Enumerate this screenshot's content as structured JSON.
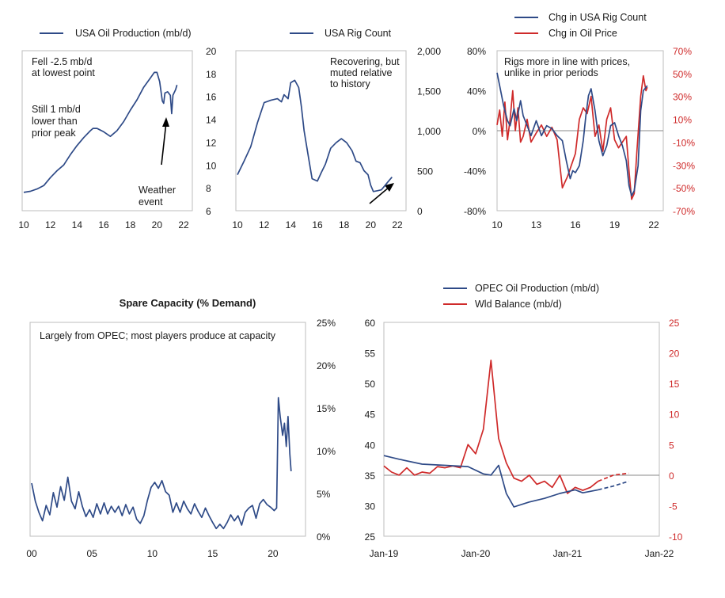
{
  "colors": {
    "blue": "#2e4a87",
    "red": "#cf2a2a",
    "frame": "#bdbdbd"
  },
  "chart_data": [
    {
      "type": "line",
      "legend": [
        "USA Oil Production (mb/d)"
      ],
      "annotations": [
        "Fell -2.5 mb/d",
        "at lowest point",
        "Still 1 mb/d",
        "lower than",
        "prior peak",
        "Weather",
        "event"
      ],
      "x_ticks": [
        "10",
        "12",
        "14",
        "16",
        "18",
        "20",
        "22"
      ],
      "y_ticks_right": [
        "20",
        "18",
        "16",
        "14",
        "12",
        "10",
        "8",
        "6"
      ],
      "xlim": [
        10,
        22
      ],
      "ylim": [
        6,
        20
      ],
      "series": [
        {
          "name": "USA Oil Production (mb/d)",
          "x": [
            10.0,
            10.5,
            11.0,
            11.5,
            12.0,
            12.5,
            13.0,
            13.5,
            14.0,
            14.5,
            15.0,
            15.2,
            15.5,
            16.0,
            16.5,
            17.0,
            17.5,
            18.0,
            18.5,
            19.0,
            19.5,
            19.8,
            20.0,
            20.2,
            20.4,
            20.5,
            20.6,
            20.8,
            21.0,
            21.1,
            21.2,
            21.4,
            21.5
          ],
          "y": [
            7.6,
            7.7,
            7.9,
            8.2,
            8.9,
            9.5,
            10.0,
            10.9,
            11.7,
            12.4,
            13.0,
            13.2,
            13.2,
            12.9,
            12.5,
            13.0,
            13.8,
            14.8,
            15.7,
            16.8,
            17.6,
            18.1,
            18.1,
            17.3,
            15.6,
            15.4,
            16.3,
            16.4,
            16.1,
            14.5,
            16.1,
            16.6,
            17.0
          ]
        }
      ]
    },
    {
      "type": "line",
      "legend": [
        "USA Rig Count"
      ],
      "annotations": [
        "Recovering, but",
        "muted relative",
        "to history"
      ],
      "x_ticks": [
        "10",
        "12",
        "14",
        "16",
        "18",
        "20",
        "22"
      ],
      "y_ticks_right": [
        "2,000",
        "1,500",
        "1,000",
        "500",
        "0"
      ],
      "xlim": [
        10,
        22
      ],
      "ylim": [
        0,
        2000
      ],
      "series": [
        {
          "name": "USA Rig Count",
          "x": [
            10.0,
            10.5,
            11.0,
            11.5,
            12.0,
            12.5,
            13.0,
            13.3,
            13.5,
            13.8,
            14.0,
            14.3,
            14.6,
            14.8,
            15.0,
            15.3,
            15.6,
            16.0,
            16.3,
            16.6,
            17.0,
            17.4,
            17.8,
            18.2,
            18.6,
            18.9,
            19.2,
            19.5,
            19.8,
            20.0,
            20.2,
            20.5,
            20.8,
            21.0,
            21.3,
            21.6
          ],
          "y": [
            450,
            620,
            800,
            1100,
            1350,
            1380,
            1400,
            1360,
            1450,
            1400,
            1600,
            1630,
            1540,
            1300,
            1000,
            700,
            400,
            370,
            480,
            580,
            780,
            850,
            900,
            850,
            750,
            620,
            600,
            500,
            450,
            320,
            240,
            250,
            260,
            300,
            360,
            420
          ]
        }
      ]
    },
    {
      "type": "line",
      "legend": [
        "Chg in USA Rig Count",
        "Chg in Oil Price"
      ],
      "annotations": [
        "Rigs more in line with prices,",
        "unlike in prior periods"
      ],
      "x_ticks": [
        "10",
        "13",
        "16",
        "19",
        "22"
      ],
      "y_ticks_left": [
        "80%",
        "40%",
        "0%",
        "-40%",
        "-80%"
      ],
      "y_ticks_right": [
        "70%",
        "50%",
        "30%",
        "10%",
        "-10%",
        "-30%",
        "-50%",
        "-70%"
      ],
      "xlim": [
        10,
        22
      ],
      "ylim_left": [
        -80,
        80
      ],
      "ylim_right": [
        -70,
        70
      ],
      "series": [
        {
          "name": "Chg in USA Rig Count",
          "axis": "left",
          "x": [
            10.0,
            10.2,
            10.5,
            10.8,
            11.0,
            11.3,
            11.5,
            11.8,
            12.0,
            12.3,
            12.6,
            13.0,
            13.4,
            13.8,
            14.2,
            14.6,
            15.0,
            15.3,
            15.6,
            15.8,
            16.0,
            16.3,
            16.6,
            16.8,
            17.0,
            17.2,
            17.5,
            17.8,
            18.1,
            18.4,
            18.7,
            19.0,
            19.3,
            19.6,
            19.9,
            20.1,
            20.3,
            20.5,
            20.8,
            21.0,
            21.2,
            21.5
          ],
          "y": [
            58,
            45,
            25,
            10,
            5,
            22,
            10,
            30,
            15,
            5,
            -5,
            10,
            -5,
            5,
            2,
            -5,
            -10,
            -30,
            -48,
            -40,
            -42,
            -35,
            -10,
            15,
            35,
            42,
            20,
            -10,
            -25,
            -15,
            5,
            8,
            -5,
            -15,
            -30,
            -55,
            -65,
            -60,
            -35,
            20,
            40,
            45
          ]
        },
        {
          "name": "Chg in Oil Price",
          "axis": "right",
          "x": [
            10.0,
            10.2,
            10.4,
            10.6,
            10.8,
            11.0,
            11.2,
            11.4,
            11.6,
            11.8,
            12.0,
            12.3,
            12.6,
            13.0,
            13.4,
            13.8,
            14.2,
            14.6,
            15.0,
            15.2,
            15.4,
            15.7,
            16.0,
            16.3,
            16.6,
            16.9,
            17.2,
            17.5,
            17.8,
            18.1,
            18.4,
            18.7,
            19.0,
            19.3,
            19.6,
            19.9,
            20.1,
            20.3,
            20.5,
            20.7,
            21.0,
            21.2,
            21.4,
            21.5
          ],
          "y": [
            5,
            18,
            -5,
            25,
            -8,
            10,
            35,
            0,
            20,
            -10,
            -5,
            10,
            -10,
            -2,
            5,
            -5,
            3,
            -8,
            -50,
            -45,
            -40,
            -30,
            -20,
            10,
            20,
            15,
            30,
            -5,
            5,
            -18,
            10,
            20,
            -8,
            -15,
            -10,
            -5,
            -35,
            -60,
            -55,
            -20,
            30,
            48,
            35,
            38
          ]
        }
      ]
    },
    {
      "type": "line",
      "title": "Spare Capacity (% Demand)",
      "annotations": [
        "Largely from OPEC; most players produce at capacity"
      ],
      "x_ticks": [
        "00",
        "05",
        "10",
        "15",
        "20"
      ],
      "y_ticks_right": [
        "25%",
        "20%",
        "15%",
        "10%",
        "5%",
        "0%"
      ],
      "xlim": [
        0,
        22.5
      ],
      "ylim": [
        0,
        25
      ],
      "series": [
        {
          "name": "Spare Capacity",
          "x": [
            0.0,
            0.3,
            0.6,
            0.9,
            1.2,
            1.5,
            1.8,
            2.1,
            2.4,
            2.7,
            3.0,
            3.3,
            3.6,
            3.9,
            4.2,
            4.5,
            4.8,
            5.1,
            5.4,
            5.7,
            6.0,
            6.3,
            6.6,
            6.9,
            7.2,
            7.5,
            7.8,
            8.1,
            8.4,
            8.7,
            9.0,
            9.3,
            9.6,
            9.9,
            10.2,
            10.5,
            10.8,
            11.1,
            11.4,
            11.7,
            12.0,
            12.3,
            12.6,
            12.9,
            13.2,
            13.5,
            13.8,
            14.1,
            14.4,
            14.7,
            15.0,
            15.3,
            15.6,
            15.9,
            16.2,
            16.5,
            16.8,
            17.1,
            17.4,
            17.7,
            18.0,
            18.3,
            18.6,
            18.9,
            19.2,
            19.5,
            19.8,
            20.1,
            20.3,
            20.45,
            20.6,
            20.8,
            20.95,
            21.1,
            21.25,
            21.4,
            21.5
          ],
          "y": [
            6.2,
            4.1,
            2.8,
            1.8,
            3.6,
            2.5,
            5.1,
            3.4,
            5.8,
            4.2,
            6.9,
            4.1,
            3.2,
            5.2,
            3.5,
            2.3,
            3.1,
            2.2,
            3.8,
            2.6,
            3.9,
            2.6,
            3.5,
            2.8,
            3.5,
            2.4,
            3.7,
            2.6,
            3.4,
            2.0,
            1.5,
            2.4,
            4.2,
            5.7,
            6.3,
            5.6,
            6.5,
            5.2,
            4.8,
            2.8,
            3.9,
            2.8,
            4.1,
            3.2,
            2.6,
            3.8,
            2.9,
            2.2,
            3.3,
            2.4,
            1.6,
            0.9,
            1.4,
            0.9,
            1.6,
            2.5,
            1.8,
            2.4,
            1.3,
            2.8,
            3.3,
            3.6,
            2.1,
            3.8,
            4.3,
            3.7,
            3.4,
            3.0,
            3.3,
            16.2,
            14.0,
            11.8,
            13.2,
            10.5,
            14.0,
            9.6,
            7.6
          ]
        }
      ]
    },
    {
      "type": "line",
      "legend": [
        "OPEC Oil Production (mb/d)",
        "Wld Balance (mb/d)"
      ],
      "x_ticks": [
        "Jan-19",
        "Jan-20",
        "Jan-21",
        "Jan-22"
      ],
      "y_ticks_left": [
        "60",
        "55",
        "50",
        "45",
        "40",
        "35",
        "30",
        "25"
      ],
      "y_ticks_right": [
        "25",
        "20",
        "15",
        "10",
        "5",
        "0",
        "-5",
        "-10"
      ],
      "xlim": [
        "2019-01",
        "2022-01"
      ],
      "ylim_left": [
        25,
        60
      ],
      "ylim_right": [
        -10,
        25
      ],
      "series": [
        {
          "name": "OPEC Oil Production (mb/d)",
          "axis": "left",
          "x": [
            "2019-01",
            "2019-03",
            "2019-06",
            "2019-09",
            "2019-12",
            "2020-02",
            "2020-03",
            "2020-04",
            "2020-05",
            "2020-06",
            "2020-08",
            "2020-10",
            "2020-12",
            "2021-02",
            "2021-03",
            "2021-05"
          ],
          "y": [
            38.2,
            37.6,
            36.8,
            36.6,
            36.4,
            35.2,
            35.0,
            36.6,
            32.0,
            29.8,
            30.6,
            31.2,
            32.0,
            32.6,
            32.1,
            32.6
          ],
          "projection": {
            "x": [
              "2021-05",
              "2021-07",
              "2021-09"
            ],
            "y": [
              32.6,
              33.2,
              34.0
            ]
          }
        },
        {
          "name": "Wld Balance (mb/d)",
          "axis": "right",
          "x": [
            "2019-01",
            "2019-02",
            "2019-03",
            "2019-04",
            "2019-05",
            "2019-06",
            "2019-07",
            "2019-08",
            "2019-09",
            "2019-10",
            "2019-11",
            "2019-12",
            "2020-01",
            "2020-02",
            "2020-03",
            "2020-04",
            "2020-05",
            "2020-06",
            "2020-07",
            "2020-08",
            "2020-09",
            "2020-10",
            "2020-11",
            "2020-12",
            "2021-01",
            "2021-02",
            "2021-03",
            "2021-04",
            "2021-05"
          ],
          "y": [
            1.5,
            0.5,
            0.0,
            1.2,
            0.0,
            0.5,
            0.3,
            1.4,
            1.2,
            1.5,
            1.2,
            5.0,
            3.5,
            7.5,
            18.8,
            6.0,
            2.0,
            -0.5,
            -1.0,
            0.0,
            -1.5,
            -1.0,
            -2.0,
            0.0,
            -3.0,
            -2.0,
            -2.5,
            -2.0,
            -1.0
          ],
          "projection": {
            "x": [
              "2021-05",
              "2021-07",
              "2021-09"
            ],
            "y": [
              -1.0,
              0.0,
              0.3
            ]
          }
        }
      ]
    }
  ]
}
